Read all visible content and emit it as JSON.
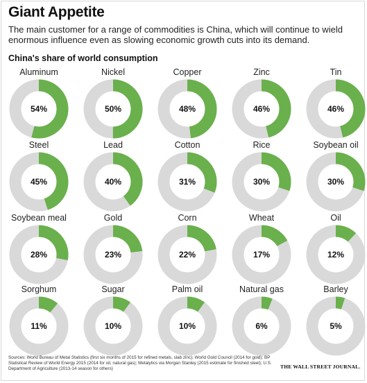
{
  "header": {
    "title": "Giant Appetite",
    "subtitle": "The main customer for a range of commodities is China, which will continue to wield enormous influence even as slowing economic growth cuts into its demand."
  },
  "chart_data": {
    "type": "pie",
    "title": "China's share of world consumption",
    "unit": "%",
    "colors": {
      "china": "#6ab04c",
      "rest": "#d9d9d9"
    },
    "categories": [
      "Aluminum",
      "Nickel",
      "Copper",
      "Zinc",
      "Tin",
      "Steel",
      "Lead",
      "Cotton",
      "Rice",
      "Soybean oil",
      "Soybean meal",
      "Gold",
      "Corn",
      "Wheat",
      "Oil",
      "Sorghum",
      "Sugar",
      "Palm oil",
      "Natural gas",
      "Barley"
    ],
    "values": [
      54,
      50,
      48,
      46,
      46,
      45,
      40,
      31,
      30,
      30,
      28,
      23,
      22,
      17,
      12,
      11,
      10,
      10,
      6,
      5
    ],
    "labels": [
      "54%",
      "50%",
      "48%",
      "46%",
      "46%",
      "45%",
      "40%",
      "31%",
      "30%",
      "30%",
      "28%",
      "23%",
      "22%",
      "17%",
      "12%",
      "11%",
      "10%",
      "10%",
      "6%",
      "5%"
    ]
  },
  "footer": {
    "sources": "Sources: World Bureau of Metal Statistics (first six months of 2015 for refined metals, slab zinc); World Gold Council (2014 for gold); BP Statistical Review of World Energy 2015 (2014 for oil, natural gas); Metalytics via Morgan Stanley (2015 estimate for finished steel); U.S. Department of Agriculture (2013-14 season for others)",
    "credit": "THE WALL STREET JOURNAL."
  }
}
